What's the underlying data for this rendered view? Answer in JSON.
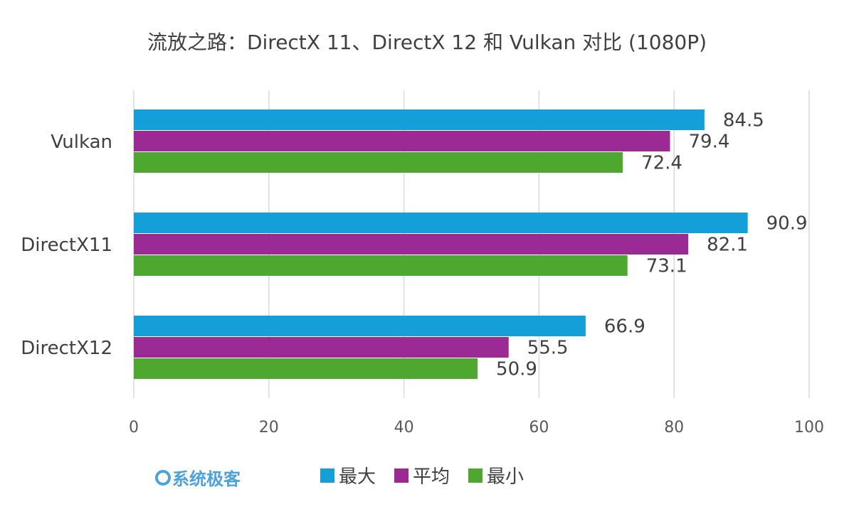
{
  "chart_data": {
    "type": "bar",
    "orientation": "horizontal",
    "title": "流放之路：DirectX 11、DirectX 12 和 Vulkan 对比 (1080P)",
    "categories": [
      "Vulkan",
      "DirectX11",
      "DirectX12"
    ],
    "series": [
      {
        "name": "最大",
        "color": "#159fd9",
        "values": [
          84.5,
          90.9,
          66.9
        ]
      },
      {
        "name": "平均",
        "color": "#9c2a94",
        "values": [
          79.4,
          82.1,
          55.5
        ]
      },
      {
        "name": "最小",
        "color": "#4ea72e",
        "values": [
          72.4,
          73.1,
          50.9
        ]
      }
    ],
    "xlim": [
      0,
      100
    ],
    "xticks": [
      "0",
      "20",
      "40",
      "60",
      "80",
      "100"
    ],
    "grid": true,
    "legend_position": "bottom",
    "xlabel": "",
    "ylabel": ""
  },
  "watermark": "系统极客"
}
